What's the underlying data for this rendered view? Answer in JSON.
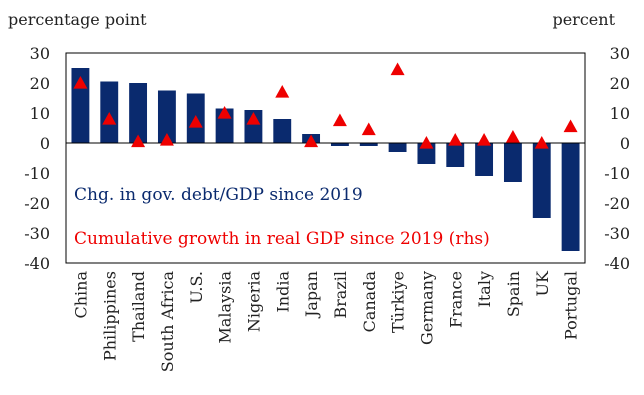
{
  "chart_data": {
    "type": "bar",
    "left_axis_unit": "percentage point",
    "right_axis_unit": "percent",
    "categories": [
      "China",
      "Philippines",
      "Thailand",
      "South Africa",
      "U.S.",
      "Malaysia",
      "Nigeria",
      "India",
      "Japan",
      "Brazil",
      "Canada",
      "Türkiye",
      "Germany",
      "France",
      "Italy",
      "Spain",
      "UK",
      "Portugal"
    ],
    "series": [
      {
        "name": "Chg. in gov. debt/GDP since 2019",
        "kind": "bar",
        "axis": "left",
        "color": "#0a2a6e",
        "values": [
          25,
          20.5,
          20,
          17.5,
          16.5,
          11.5,
          11,
          8,
          3,
          -1,
          -1,
          -3,
          -7,
          -8,
          -11,
          -13,
          -25,
          -36
        ]
      },
      {
        "name": "Cumulative growth in real GDP since 2019 (rhs)",
        "kind": "marker",
        "axis": "right",
        "color": "#ee0000",
        "values": [
          20,
          8,
          0.5,
          1,
          7,
          10,
          8,
          17,
          0.5,
          7.5,
          4.5,
          24.5,
          0,
          1,
          1,
          2,
          0,
          5.5
        ]
      }
    ],
    "left_yticks": [
      "30",
      "20",
      "10",
      "0",
      "-10",
      "-20",
      "-30",
      "-40"
    ],
    "right_yticks": [
      "30",
      "20",
      "10",
      "0",
      "-10",
      "-20",
      "-30",
      "-40"
    ],
    "ylim": [
      -40,
      30
    ],
    "grid": false,
    "legend": "inside-bottom-left"
  }
}
